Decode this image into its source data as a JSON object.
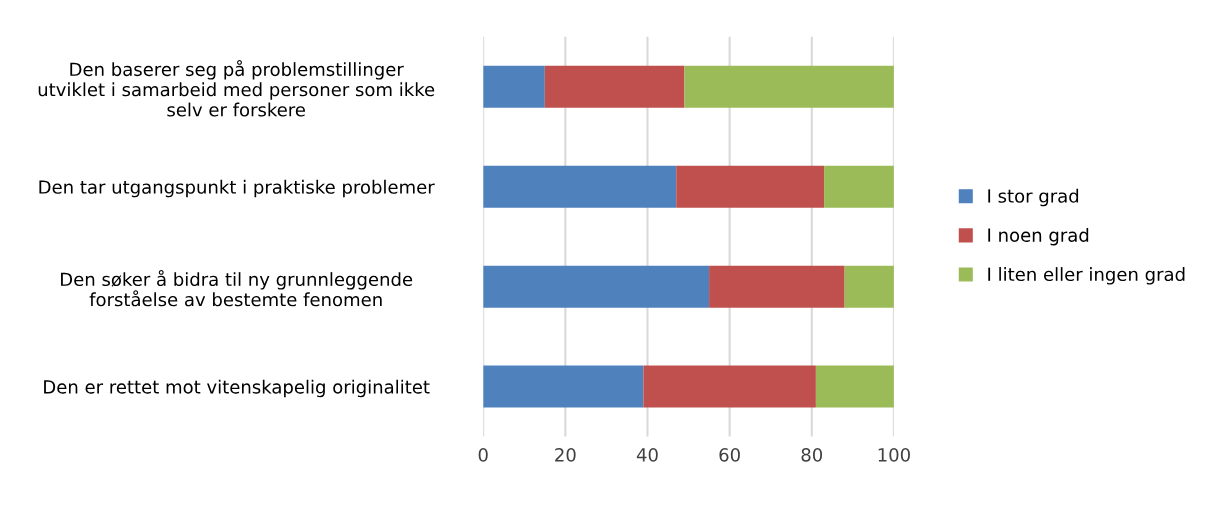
{
  "chart_data": {
    "type": "bar",
    "orientation": "horizontal",
    "stacked": true,
    "categories": [
      "Den baserer seg på problemstillinger\nutviklet i samarbeid med personer som ikke\nselv er forskere",
      "Den tar utgangspunkt i praktiske problemer",
      "Den søker å bidra til ny grunnleggende\nforståelse av bestemte fenomen",
      "Den er rettet mot vitenskapelig originalitet"
    ],
    "series": [
      {
        "name": "I stor grad",
        "color": "#4f81bd",
        "values": [
          15,
          47,
          55,
          39
        ]
      },
      {
        "name": "I noen grad",
        "color": "#c0504d",
        "values": [
          34,
          36,
          33,
          42
        ]
      },
      {
        "name": "I liten eller ingen grad",
        "color": "#9bbb59",
        "values": [
          51,
          17,
          12,
          19
        ]
      }
    ],
    "xlim": [
      0,
      100
    ],
    "xticks": [
      0,
      20,
      40,
      60,
      80,
      100
    ],
    "grid": "x",
    "legend": "right"
  }
}
